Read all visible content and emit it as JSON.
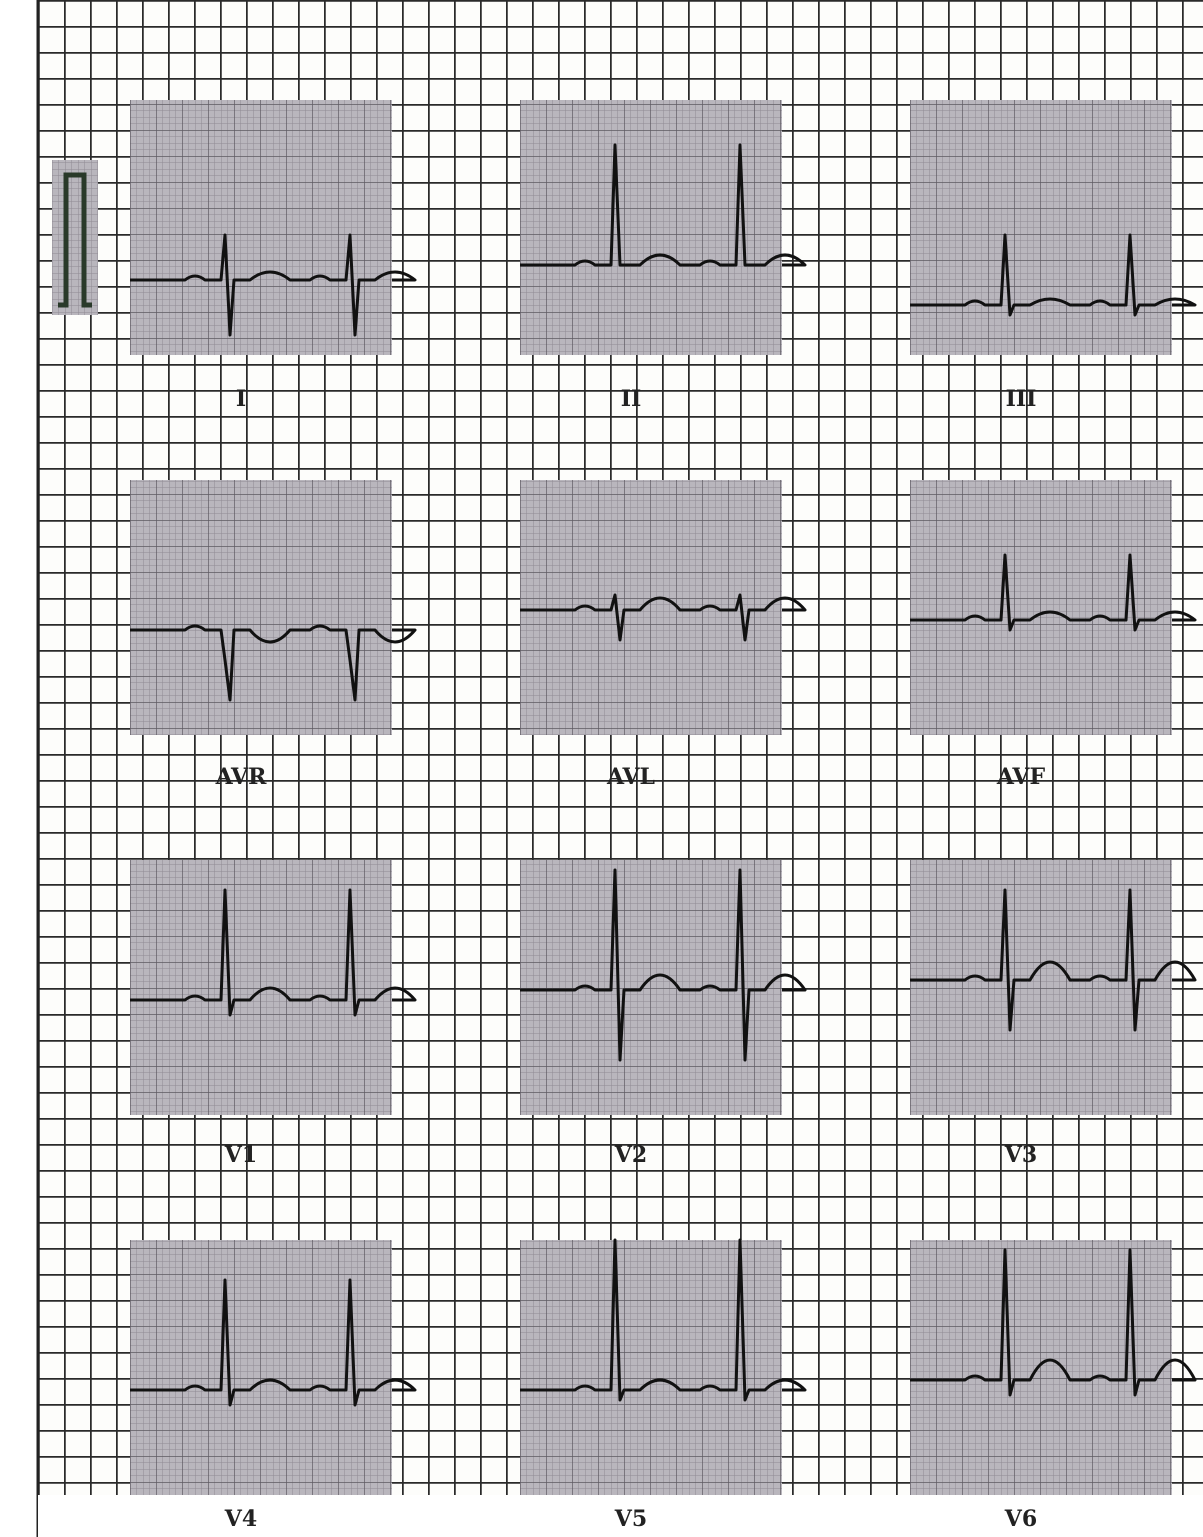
{
  "leads": [
    "I",
    "II",
    "III",
    "AVR",
    "AVL",
    "AVF",
    "V1",
    "V2",
    "V3",
    "V4",
    "V5",
    "V6"
  ]
}
